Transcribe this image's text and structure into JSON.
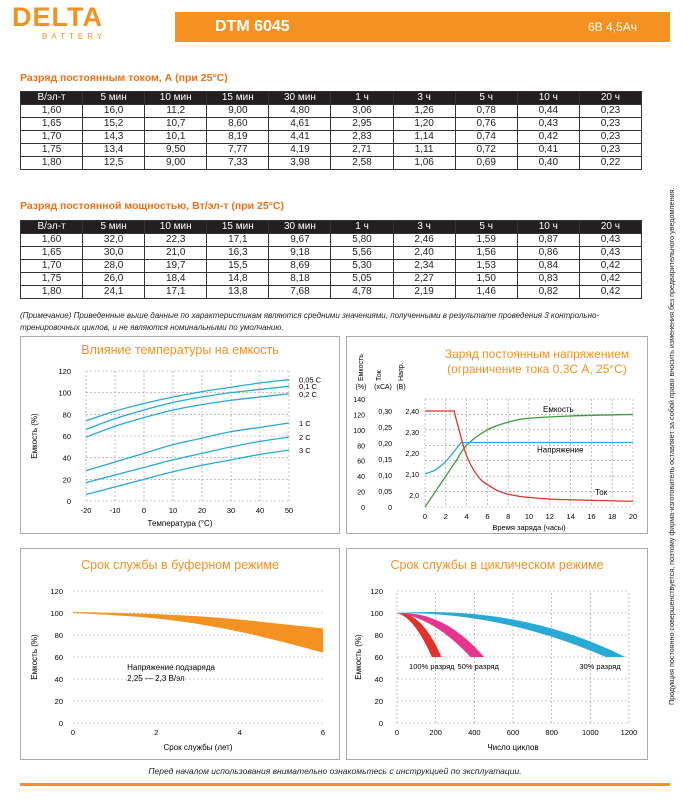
{
  "header": {
    "logo": "DELTA",
    "logo_sub": "BATTERY",
    "model": "DTM 6045",
    "spec": "6В   4,5Ач"
  },
  "current_table": {
    "title": "Разряд постоянным током, А (при 25°С)",
    "columns": [
      "В/эл-т",
      "5 мин",
      "10 мин",
      "15 мин",
      "30 мин",
      "1 ч",
      "3 ч",
      "5 ч",
      "10 ч",
      "20 ч"
    ],
    "rows": [
      [
        "1,60",
        "16,0",
        "11,2",
        "9,00",
        "4,80",
        "3,06",
        "1,26",
        "0,78",
        "0,44",
        "0,23"
      ],
      [
        "1,65",
        "15,2",
        "10,7",
        "8,60",
        "4,61",
        "2,95",
        "1,20",
        "0,76",
        "0,43",
        "0,23"
      ],
      [
        "1,70",
        "14,3",
        "10,1",
        "8,19",
        "4,41",
        "2,83",
        "1,14",
        "0,74",
        "0,42",
        "0,23"
      ],
      [
        "1,75",
        "13,4",
        "9,50",
        "7,77",
        "4,19",
        "2,71",
        "1,11",
        "0,72",
        "0,41",
        "0,23"
      ],
      [
        "1,80",
        "12,5",
        "9,00",
        "7,33",
        "3,98",
        "2,58",
        "1,06",
        "0,69",
        "0,40",
        "0,22"
      ]
    ]
  },
  "power_table": {
    "title": "Разряд постоянной мощностью, Вт/эл-т (при 25°С)",
    "columns": [
      "В/эл-т",
      "5 мин",
      "10 мин",
      "15 мин",
      "30 мин",
      "1 ч",
      "3 ч",
      "5 ч",
      "10 ч",
      "20 ч"
    ],
    "rows": [
      [
        "1,60",
        "32,0",
        "22,3",
        "17,1",
        "9,67",
        "5,80",
        "2,46",
        "1,59",
        "0,87",
        "0,43"
      ],
      [
        "1,65",
        "30,0",
        "21,0",
        "16,3",
        "9,18",
        "5,56",
        "2,40",
        "1,56",
        "0,86",
        "0,43"
      ],
      [
        "1,70",
        "28,0",
        "19,7",
        "15,5",
        "8,69",
        "5,30",
        "2,34",
        "1,53",
        "0,84",
        "0,42"
      ],
      [
        "1,75",
        "26,0",
        "18,4",
        "14,8",
        "8,18",
        "5,05",
        "2,27",
        "1,50",
        "0,83",
        "0,42"
      ],
      [
        "1,80",
        "24,1",
        "17,1",
        "13,8",
        "7,68",
        "4,78",
        "2,19",
        "1,46",
        "0,82",
        "0,42"
      ]
    ]
  },
  "note": "(Примечание) Приведенные выше данные по характеристикам являются средними значениями, полученными в результате проведения 3 контрольно-тренировочных циклов, и не являются номинальными по умолчанию.",
  "side_text": "Продукция постоянно совершенствуется, поэтому фирма-изготовитель оставляет за собой право вносить изменения без предварительного уведомления.",
  "footer": "Перед началом использования внимательно ознакомьтесь с инструкцией по эксплуатации.",
  "colors": {
    "accent": "#f39221",
    "curve": "#29a9d6",
    "charge": "#3b9c3b",
    "current": "#e2332a",
    "pink": "#e5368f"
  },
  "chart_data": [
    {
      "type": "line",
      "title": "Влияние температуры на емкость",
      "xlabel": "Температура (°С)",
      "ylabel": "Емкость (%)",
      "xlim": [
        -20,
        50
      ],
      "ylim": [
        0,
        120
      ],
      "x_ticks": [
        "-20",
        "-10",
        "0",
        "10",
        "20",
        "30",
        "40",
        "50"
      ],
      "y_ticks": [
        "0",
        "20",
        "40",
        "60",
        "80",
        "100",
        "120"
      ],
      "series": [
        {
          "name": "0,05 С",
          "x": [
            -20,
            -10,
            0,
            10,
            20,
            30,
            40,
            50
          ],
          "values": [
            74,
            83,
            90,
            96,
            101,
            105,
            109,
            112
          ]
        },
        {
          "name": "0,1 С",
          "x": [
            -20,
            -10,
            0,
            10,
            20,
            30,
            40,
            50
          ],
          "values": [
            66,
            76,
            84,
            91,
            96,
            100,
            103,
            106
          ]
        },
        {
          "name": "0,2 С",
          "x": [
            -20,
            -10,
            0,
            10,
            20,
            30,
            40,
            50
          ],
          "values": [
            59,
            69,
            77,
            84,
            89,
            93,
            96,
            99
          ]
        },
        {
          "name": "1 С",
          "x": [
            -20,
            -10,
            0,
            10,
            20,
            30,
            40,
            50
          ],
          "values": [
            28,
            36,
            44,
            52,
            58,
            64,
            68,
            72
          ]
        },
        {
          "name": "2 С",
          "x": [
            -20,
            -10,
            0,
            10,
            20,
            30,
            40,
            50
          ],
          "values": [
            17,
            24,
            31,
            38,
            44,
            50,
            55,
            59
          ]
        },
        {
          "name": "3 С",
          "x": [
            -20,
            -10,
            0,
            10,
            20,
            30,
            40,
            50
          ],
          "values": [
            6,
            13,
            20,
            27,
            33,
            38,
            43,
            47
          ]
        }
      ]
    },
    {
      "type": "line",
      "title": "Заряд постоянным напряжением",
      "subtitle": "(ограничение тока 0,3С А, 25°С)",
      "xlabel": "Время заряда (часы)",
      "axis_labels": [
        "Емкость",
        "Ток",
        "Напр."
      ],
      "axis_units": [
        "(%)",
        "(хСА)",
        "(В)"
      ],
      "xlim": [
        0,
        20
      ],
      "x_ticks": [
        "0",
        "2",
        "4",
        "6",
        "8",
        "10",
        "12",
        "14",
        "16",
        "18",
        "20"
      ],
      "capacity_ticks": [
        "0",
        "20",
        "40",
        "60",
        "80",
        "100",
        "120",
        "140"
      ],
      "current_ticks": [
        "0",
        "0,05",
        "0,10",
        "0,15",
        "0,20",
        "0,25",
        "0,30"
      ],
      "voltage_ticks": [
        "2,0",
        "2,10",
        "2,20",
        "2,30",
        "2,40"
      ],
      "series": [
        {
          "name": "Емкость",
          "x": [
            0,
            1,
            2,
            3,
            4,
            6,
            8,
            10,
            14,
            20
          ],
          "values": [
            0,
            20,
            40,
            60,
            80,
            100,
            110,
            115,
            118,
            120
          ]
        },
        {
          "name": "Напряжение",
          "x": [
            0,
            1,
            2,
            3,
            3.5,
            20
          ],
          "values": [
            2.1,
            2.12,
            2.16,
            2.22,
            2.25,
            2.25
          ]
        },
        {
          "name": "Ток",
          "x": [
            0,
            2.8,
            3.2,
            4,
            5,
            6,
            8,
            12,
            20
          ],
          "values": [
            0.3,
            0.3,
            0.25,
            0.16,
            0.1,
            0.07,
            0.04,
            0.025,
            0.018
          ]
        }
      ]
    },
    {
      "type": "area",
      "title": "Срок службы в буферном режиме",
      "xlabel": "Срок службы (лет)",
      "ylabel": "Емкость (%)",
      "xlim": [
        0,
        6
      ],
      "ylim": [
        0,
        120
      ],
      "x_ticks": [
        "0",
        "2",
        "4",
        "6"
      ],
      "y_ticks": [
        "0",
        "20",
        "40",
        "60",
        "80",
        "100",
        "120"
      ],
      "annotation": [
        "Напряжение подзаряда",
        "2,25 — 2,3 В/эл"
      ],
      "upper": {
        "x": [
          0,
          1,
          2,
          3,
          4,
          5,
          6
        ],
        "values": [
          101,
          100,
          99,
          97,
          94,
          90,
          86
        ]
      },
      "lower": {
        "x": [
          0,
          1,
          2,
          3,
          4,
          5,
          6
        ],
        "values": [
          100,
          98,
          95,
          90,
          83,
          74,
          64
        ]
      }
    },
    {
      "type": "area",
      "title": "Срок службы в циклическом режиме",
      "xlabel": "Число циклов",
      "ylabel": "Емкость (%)",
      "xlim": [
        0,
        1200
      ],
      "ylim": [
        0,
        120
      ],
      "x_ticks": [
        "0",
        "200",
        "400",
        "600",
        "800",
        "1000",
        "1200"
      ],
      "y_ticks": [
        "0",
        "20",
        "40",
        "60",
        "80",
        "100",
        "120"
      ],
      "series": [
        {
          "name": "100% разряд",
          "peak": 100,
          "end_min": 180,
          "end_max": 230
        },
        {
          "name": "50% разряд",
          "peak": 100,
          "end_min": 380,
          "end_max": 450
        },
        {
          "name": "30% разряд",
          "peak": 105,
          "end_min": 1080,
          "end_max": 1180
        }
      ]
    }
  ]
}
